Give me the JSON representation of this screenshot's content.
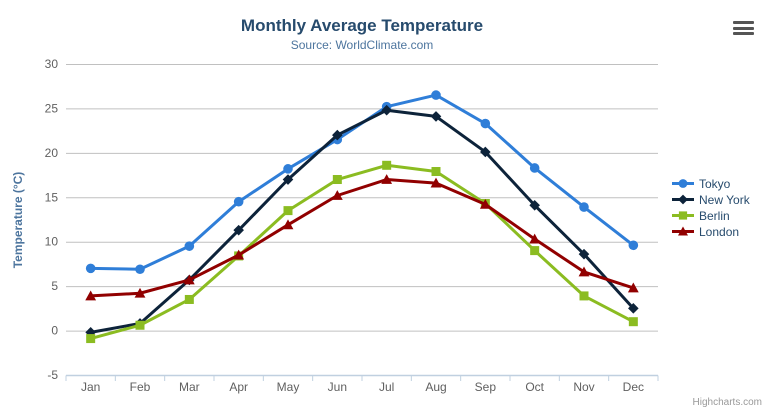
{
  "header": {
    "title": "Monthly Average Temperature",
    "subtitle": "Source: WorldClimate.com"
  },
  "credits": "Highcharts.com",
  "colors": {
    "title_text": "#274b6d",
    "subtitle_text": "#4d759e",
    "tick_text": "#606060",
    "grid_line": "#c0c0c0",
    "axis_line": "#c0d0e0",
    "background": "#ffffff"
  },
  "chart_data": {
    "type": "line",
    "title": "Monthly Average Temperature",
    "subtitle": "Source: WorldClimate.com",
    "categories": [
      "Jan",
      "Feb",
      "Mar",
      "Apr",
      "May",
      "Jun",
      "Jul",
      "Aug",
      "Sep",
      "Oct",
      "Nov",
      "Dec"
    ],
    "series": [
      {
        "name": "Tokyo",
        "color": "#2f7ed8",
        "marker": "circle",
        "values": [
          7.0,
          6.9,
          9.5,
          14.5,
          18.2,
          21.5,
          25.2,
          26.5,
          23.3,
          18.3,
          13.9,
          9.6
        ]
      },
      {
        "name": "New York",
        "color": "#0d233a",
        "marker": "diamond",
        "values": [
          -0.2,
          0.8,
          5.7,
          11.3,
          17.0,
          22.0,
          24.8,
          24.1,
          20.1,
          14.1,
          8.6,
          2.5
        ]
      },
      {
        "name": "Berlin",
        "color": "#8bbc21",
        "marker": "square",
        "values": [
          -0.9,
          0.6,
          3.5,
          8.4,
          13.5,
          17.0,
          18.6,
          17.9,
          14.3,
          9.0,
          3.9,
          1.0
        ]
      },
      {
        "name": "London",
        "color": "#910000",
        "marker": "triangle",
        "values": [
          3.9,
          4.2,
          5.7,
          8.5,
          11.9,
          15.2,
          17.0,
          16.6,
          14.2,
          10.3,
          6.6,
          4.8
        ]
      }
    ],
    "xlabel": "",
    "ylabel": "Temperature (°C)",
    "ylim": [
      -5,
      30
    ],
    "ytick_step": 5,
    "grid": true,
    "legend_position": "right"
  }
}
